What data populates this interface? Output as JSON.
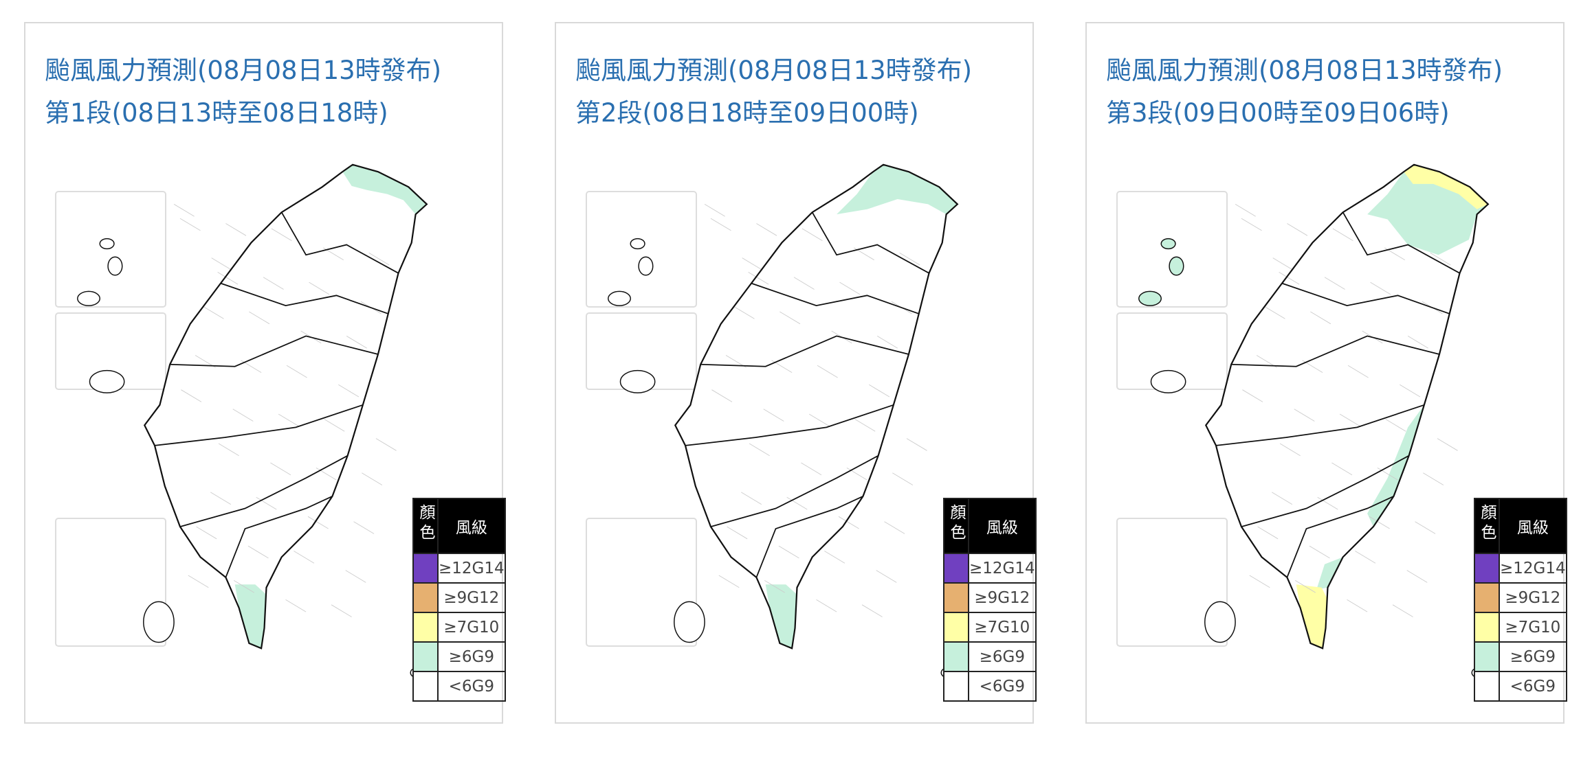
{
  "panels": [
    {
      "title": "颱風風力預測(08月08日13時發布)",
      "period": "第1段(08日13時至08日18時)"
    },
    {
      "title": "颱風風力預測(08月08日13時發布)",
      "period": "第2段(08日18時至09日00時)"
    },
    {
      "title": "颱風風力預測(08月08日13時發布)",
      "period": "第3段(09日00時至09日06時)"
    }
  ],
  "legend": {
    "color_header": "顏色",
    "level_header": "風級",
    "levels": [
      "≥12G14",
      "≥9G12",
      "≥7G10",
      "≥6G9",
      "<6G9"
    ]
  }
}
